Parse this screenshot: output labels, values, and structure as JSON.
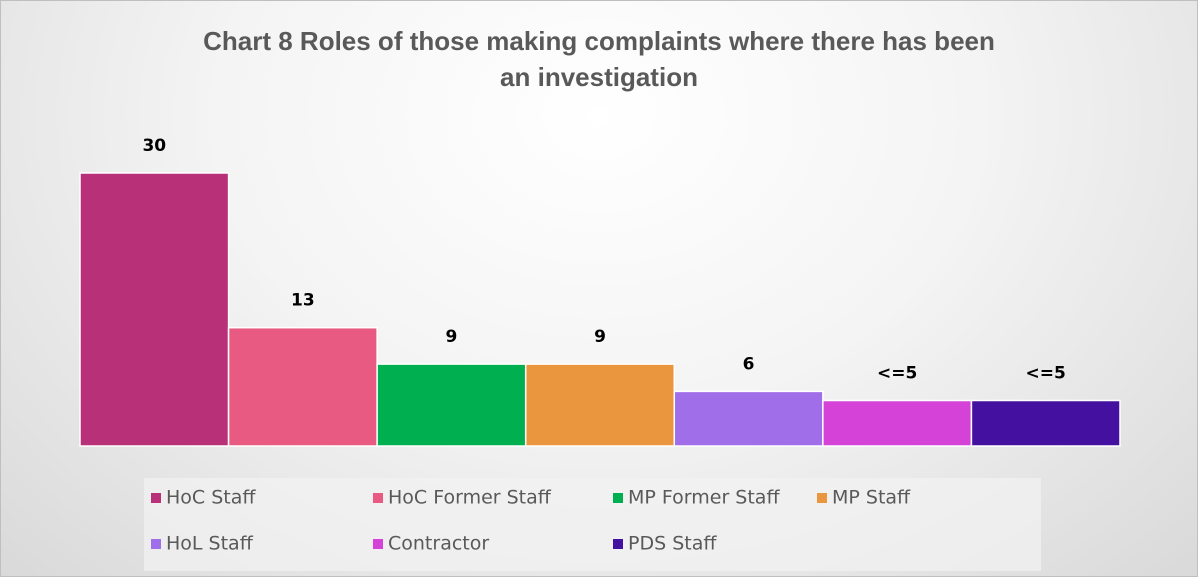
{
  "chart_data": {
    "type": "bar",
    "title": "Chart 8 Roles of those making complaints where there has been an investigation",
    "categories": [
      "HoC Staff",
      "HoC Former Staff",
      "MP Former Staff",
      "MP Staff",
      "HoL Staff",
      "Contractor",
      "PDS Staff"
    ],
    "values": [
      30,
      13,
      9,
      9,
      6,
      5,
      5
    ],
    "value_labels": [
      "30",
      "13",
      "9",
      "9",
      "6",
      "<=5",
      "<=5"
    ],
    "colors": [
      "#b83077",
      "#e85a82",
      "#00b050",
      "#e9963e",
      "#a06ee8",
      "#d542d8",
      "#4410a0"
    ],
    "ylim": [
      0,
      30
    ],
    "legend": "bottom"
  }
}
